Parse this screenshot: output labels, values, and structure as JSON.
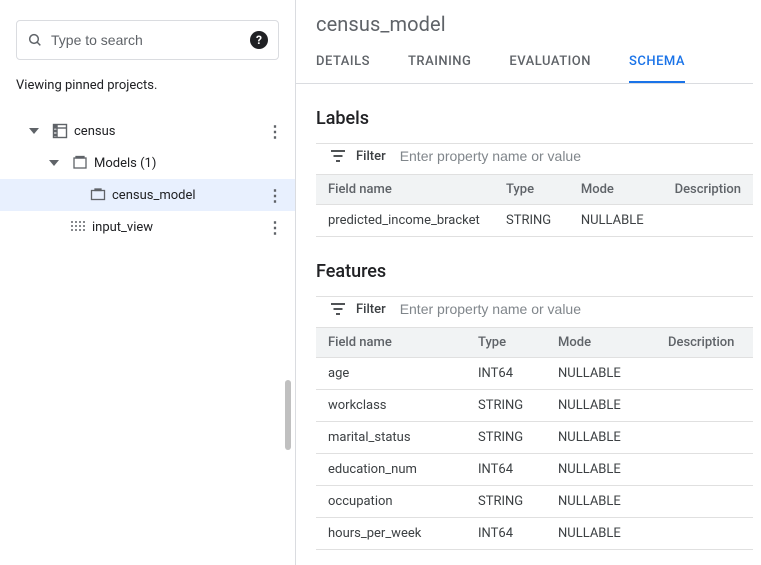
{
  "sidebar": {
    "search_placeholder": "Type to search",
    "viewing_note": "Viewing pinned projects.",
    "tree": {
      "dataset": {
        "label": "census"
      },
      "models_group": {
        "label": "Models (1)"
      },
      "model": {
        "label": "census_model"
      },
      "view": {
        "label": "input_view"
      }
    }
  },
  "header": {
    "title": "census_model",
    "tabs": {
      "details": "DETAILS",
      "training": "TRAINING",
      "evaluation": "EVALUATION",
      "schema": "SCHEMA"
    }
  },
  "labels_section": {
    "title": "Labels",
    "filter_label": "Filter",
    "filter_placeholder": "Enter property name or value",
    "columns": {
      "field": "Field name",
      "type": "Type",
      "mode": "Mode",
      "desc": "Description"
    },
    "rows": [
      {
        "field": "predicted_income_bracket",
        "type": "STRING",
        "mode": "NULLABLE",
        "desc": ""
      }
    ]
  },
  "features_section": {
    "title": "Features",
    "filter_label": "Filter",
    "filter_placeholder": "Enter property name or value",
    "columns": {
      "field": "Field name",
      "type": "Type",
      "mode": "Mode",
      "desc": "Description"
    },
    "rows": [
      {
        "field": "age",
        "type": "INT64",
        "mode": "NULLABLE",
        "desc": ""
      },
      {
        "field": "workclass",
        "type": "STRING",
        "mode": "NULLABLE",
        "desc": ""
      },
      {
        "field": "marital_status",
        "type": "STRING",
        "mode": "NULLABLE",
        "desc": ""
      },
      {
        "field": "education_num",
        "type": "INT64",
        "mode": "NULLABLE",
        "desc": ""
      },
      {
        "field": "occupation",
        "type": "STRING",
        "mode": "NULLABLE",
        "desc": ""
      },
      {
        "field": "hours_per_week",
        "type": "INT64",
        "mode": "NULLABLE",
        "desc": ""
      }
    ]
  },
  "colors": {
    "accent": "#1a73e8",
    "border": "#dadce0",
    "muted": "#5f6368",
    "header_bg": "#f1f3f4",
    "selected_bg": "#e8f0fe"
  },
  "table_widths": {
    "labels": [
      "180px",
      "80px",
      "100px",
      "auto"
    ],
    "features": [
      "150px",
      "80px",
      "110px",
      "auto"
    ]
  }
}
